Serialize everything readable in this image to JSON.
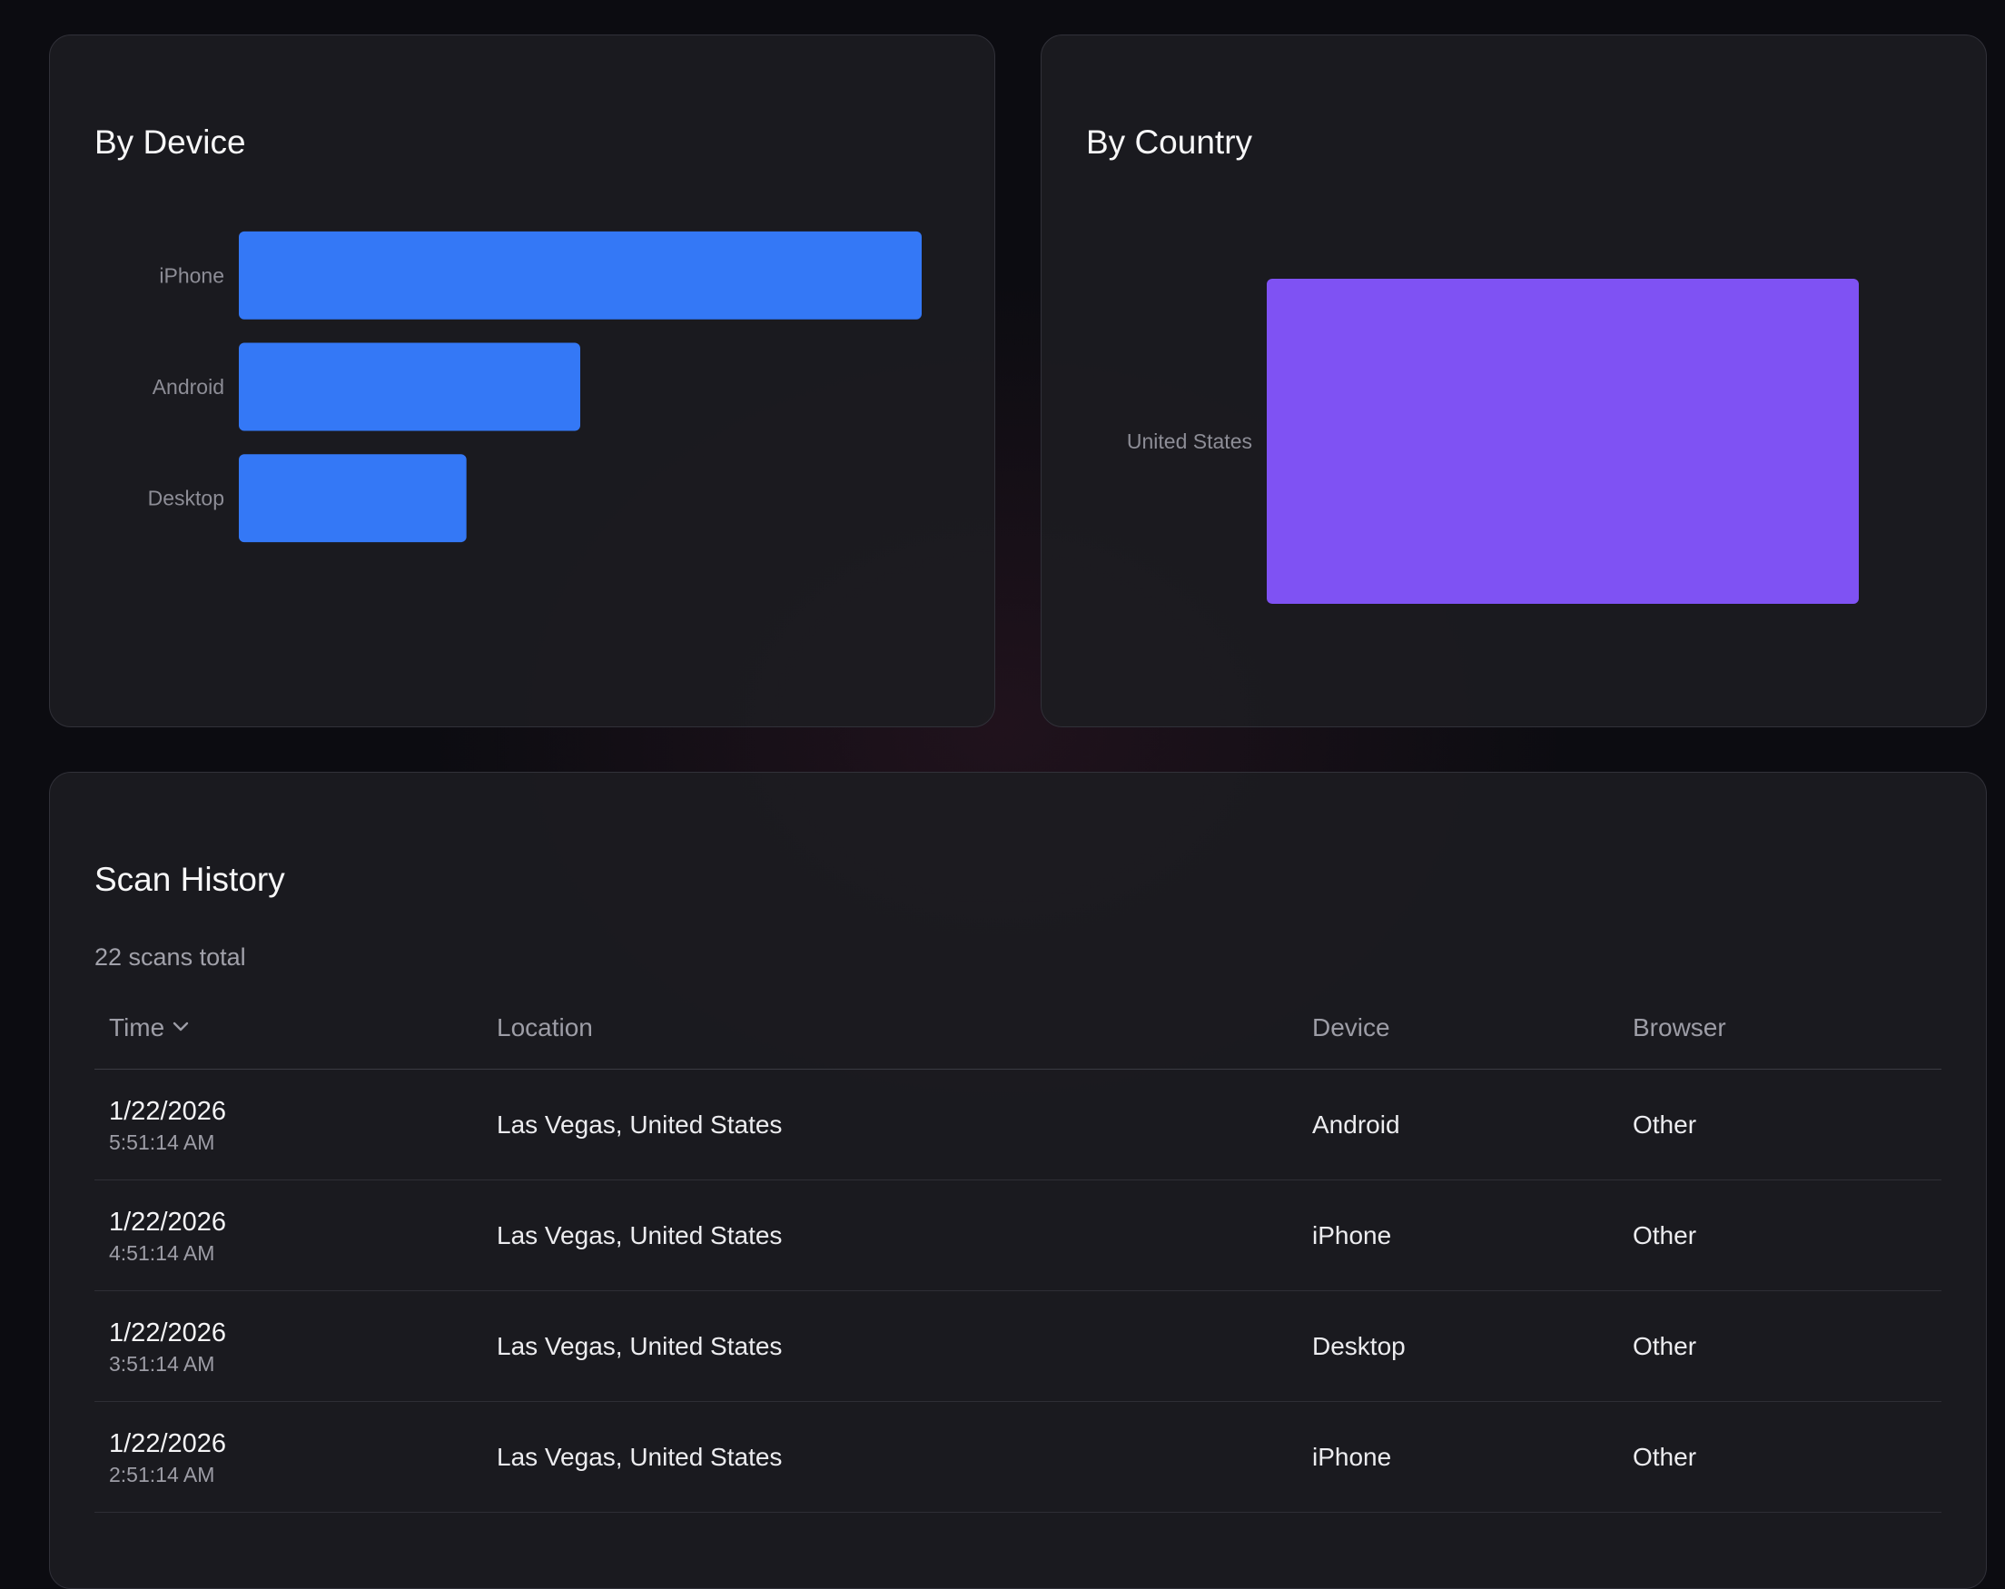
{
  "device_card": {
    "title": "By Device"
  },
  "country_card": {
    "title": "By Country"
  },
  "chart_data": [
    {
      "type": "bar",
      "orientation": "horizontal",
      "title": "By Device",
      "categories": [
        "iPhone",
        "Android",
        "Desktop"
      ],
      "values": [
        12,
        6,
        4
      ],
      "xlim": [
        0,
        12
      ],
      "color": "#3478f6",
      "grid": false
    },
    {
      "type": "bar",
      "orientation": "horizontal",
      "title": "By Country",
      "categories": [
        "United States"
      ],
      "values": [
        22
      ],
      "xlim": [
        0,
        22
      ],
      "color": "#7f52f3",
      "grid": false
    }
  ],
  "history": {
    "title": "Scan History",
    "subtitle": "22 scans total",
    "columns": {
      "time": "Time",
      "location": "Location",
      "device": "Device",
      "browser": "Browser"
    },
    "sort_icon": "chevron-down-icon",
    "rows": [
      {
        "date": "1/22/2026",
        "time": "5:51:14 AM",
        "location": "Las Vegas, United States",
        "device": "Android",
        "browser": "Other"
      },
      {
        "date": "1/22/2026",
        "time": "4:51:14 AM",
        "location": "Las Vegas, United States",
        "device": "iPhone",
        "browser": "Other"
      },
      {
        "date": "1/22/2026",
        "time": "3:51:14 AM",
        "location": "Las Vegas, United States",
        "device": "Desktop",
        "browser": "Other"
      },
      {
        "date": "1/22/2026",
        "time": "2:51:14 AM",
        "location": "Las Vegas, United States",
        "device": "iPhone",
        "browser": "Other"
      }
    ]
  },
  "colors": {
    "background": "#0c0c11",
    "card": "#1c1c21",
    "device_bar": "#3478f6",
    "country_bar": "#7f52f3"
  }
}
